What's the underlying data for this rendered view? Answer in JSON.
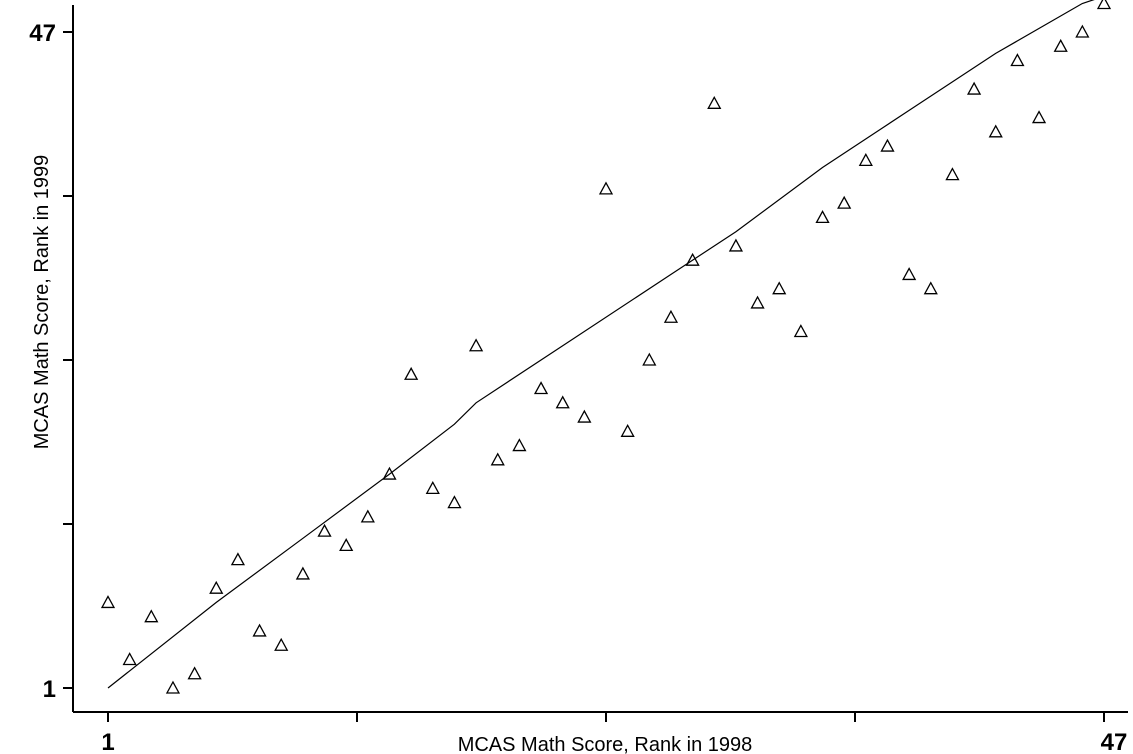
{
  "chart_data": {
    "type": "scatter",
    "title": "",
    "xlabel": "MCAS Math Score, Rank in 1998",
    "ylabel": "MCAS Math Score, Rank in 1999",
    "xlim": [
      1,
      47
    ],
    "ylim": [
      1,
      47
    ],
    "x_ticks": [
      1,
      12.5,
      24,
      35.5,
      47
    ],
    "y_ticks": [
      1,
      12.5,
      24,
      35.5,
      47
    ],
    "x_tick_labels": [
      "1",
      "",
      "",
      "",
      "47"
    ],
    "y_tick_labels": [
      "1",
      "",
      "",
      "",
      "47"
    ],
    "marker": "hollow-triangle",
    "grid": false,
    "series": [
      {
        "kind": "points",
        "points": [
          [
            1,
            7.0
          ],
          [
            2,
            3.0
          ],
          [
            3,
            6.0
          ],
          [
            4,
            1.0
          ],
          [
            5,
            2.0
          ],
          [
            6,
            8.0
          ],
          [
            7,
            10.0
          ],
          [
            8,
            5.0
          ],
          [
            9,
            4.0
          ],
          [
            10,
            9.0
          ],
          [
            11,
            12.0
          ],
          [
            12,
            11.0
          ],
          [
            13,
            13.0
          ],
          [
            14,
            16.0
          ],
          [
            15,
            23.0
          ],
          [
            16,
            15.0
          ],
          [
            17,
            14.0
          ],
          [
            18,
            25.0
          ],
          [
            19,
            17.0
          ],
          [
            20,
            18.0
          ],
          [
            21,
            22.0
          ],
          [
            22,
            21.0
          ],
          [
            23,
            20.0
          ],
          [
            24,
            36.0
          ],
          [
            25,
            19.0
          ],
          [
            26,
            24.0
          ],
          [
            27,
            27.0
          ],
          [
            28,
            31.0
          ],
          [
            29,
            42.0
          ],
          [
            30,
            32.0
          ],
          [
            31,
            28.0
          ],
          [
            32,
            29.0
          ],
          [
            33,
            26.0
          ],
          [
            34,
            34.0
          ],
          [
            35,
            35.0
          ],
          [
            36,
            38.0
          ],
          [
            37,
            39.0
          ],
          [
            38,
            30.0
          ],
          [
            39,
            29.0
          ],
          [
            40,
            37.0
          ],
          [
            41,
            43.0
          ],
          [
            42,
            40.0
          ],
          [
            43,
            45.0
          ],
          [
            44,
            41.0
          ],
          [
            45,
            46.0
          ],
          [
            46,
            47.0
          ],
          [
            47,
            49.0
          ]
        ]
      },
      {
        "kind": "line",
        "points": [
          [
            1,
            1.0
          ],
          [
            6,
            7.0
          ],
          [
            10,
            11.5
          ],
          [
            14,
            16.0
          ],
          [
            17,
            19.5
          ],
          [
            18,
            21.0
          ],
          [
            22,
            25.0
          ],
          [
            27,
            30.0
          ],
          [
            30,
            33.0
          ],
          [
            34,
            37.5
          ],
          [
            38,
            41.5
          ],
          [
            42,
            45.5
          ],
          [
            46,
            49.0
          ],
          [
            47,
            49.5
          ]
        ]
      }
    ]
  }
}
